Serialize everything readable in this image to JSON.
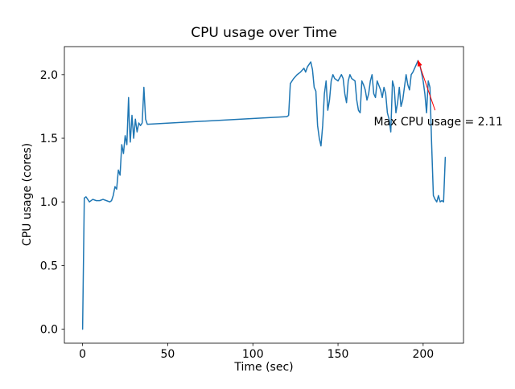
{
  "figure": {
    "background": "#ffffff"
  },
  "chart_data": {
    "type": "line",
    "title": "CPU usage over Time",
    "xlabel": "Time (sec)",
    "ylabel": "CPU usage (cores)",
    "xlim": [
      -10.7,
      223.7
    ],
    "ylim": [
      -0.11,
      2.22
    ],
    "xticks": [
      0,
      50,
      100,
      150,
      200
    ],
    "xtick_labels": [
      "0",
      "50",
      "100",
      "150",
      "200"
    ],
    "yticks": [
      0,
      0.5,
      1,
      1.5,
      2
    ],
    "ytick_labels": [
      "0.0",
      "0.5",
      "1.0",
      "1.5",
      "2.0"
    ],
    "grid": false,
    "legend": null,
    "line_color": "#1f77b4",
    "annotation": {
      "text": "Max CPU usage = 2.11",
      "color": "#ff0000",
      "xy": [
        197,
        2.11
      ],
      "arrow_tail": [
        207,
        1.72
      ],
      "text_xy": [
        171,
        1.6
      ]
    },
    "series": [
      {
        "name": "CPU usage",
        "x": [
          0,
          1,
          2,
          4,
          6,
          8,
          10,
          12,
          14,
          16,
          17,
          18,
          19,
          20,
          21,
          22,
          23,
          24,
          25,
          26,
          27,
          27.5,
          28,
          29,
          30,
          31,
          32,
          33,
          34,
          35,
          36,
          37,
          38,
          120,
          121,
          122,
          123,
          124,
          126,
          128,
          130,
          131,
          132,
          133,
          134,
          135,
          136,
          137,
          138,
          139,
          140,
          141,
          142,
          143,
          144,
          145,
          146,
          147,
          148,
          150,
          152,
          153,
          154,
          155,
          156,
          157,
          158,
          160,
          161,
          162,
          163,
          164,
          165,
          166,
          167,
          168,
          169,
          170,
          171,
          172,
          173,
          175,
          176,
          177,
          178,
          179,
          180,
          181,
          182,
          183,
          184,
          185,
          186,
          187,
          188,
          189,
          190,
          191,
          192,
          193,
          194,
          195,
          196,
          197,
          198,
          199,
          200,
          201,
          202,
          203,
          204,
          205,
          206,
          207,
          208,
          209,
          210,
          211,
          212,
          213
        ],
        "y": [
          0.0,
          1.03,
          1.04,
          1.0,
          1.02,
          1.01,
          1.01,
          1.02,
          1.01,
          1.0,
          1.01,
          1.05,
          1.12,
          1.1,
          1.25,
          1.21,
          1.45,
          1.38,
          1.52,
          1.45,
          1.82,
          1.6,
          1.47,
          1.68,
          1.5,
          1.65,
          1.55,
          1.62,
          1.6,
          1.62,
          1.9,
          1.65,
          1.61,
          1.67,
          1.68,
          1.93,
          1.95,
          1.97,
          2.0,
          2.02,
          2.05,
          2.02,
          2.06,
          2.08,
          2.1,
          2.04,
          1.9,
          1.87,
          1.6,
          1.5,
          1.44,
          1.6,
          1.85,
          1.95,
          1.72,
          1.8,
          1.95,
          2.0,
          1.97,
          1.95,
          2.0,
          1.97,
          1.85,
          1.78,
          1.95,
          2.0,
          1.97,
          1.95,
          1.8,
          1.72,
          1.7,
          1.95,
          1.92,
          1.88,
          1.8,
          1.85,
          1.95,
          2.0,
          1.85,
          1.82,
          1.95,
          1.88,
          1.82,
          1.9,
          1.85,
          1.7,
          1.65,
          1.55,
          1.95,
          1.9,
          1.7,
          1.78,
          1.9,
          1.75,
          1.8,
          1.9,
          2.0,
          1.92,
          1.88,
          2.0,
          2.02,
          2.05,
          2.08,
          2.11,
          2.08,
          2.02,
          1.95,
          1.85,
          1.7,
          1.95,
          1.9,
          1.45,
          1.05,
          1.02,
          1.0,
          1.05,
          1.0,
          1.01,
          1.0,
          1.35
        ]
      }
    ]
  }
}
